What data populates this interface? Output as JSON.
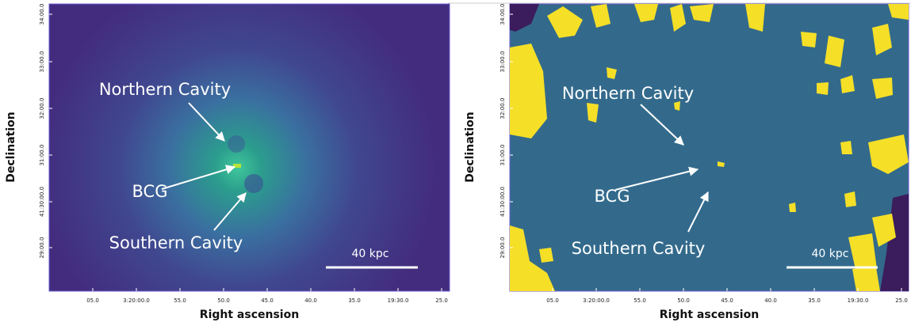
{
  "panels": [
    {
      "y_label": "Declination",
      "x_label": "Right ascension",
      "y_ticks": [
        "34:00.0",
        "33:00.0",
        "32:00.0",
        "31:00.0",
        "41:30:00.0",
        "29:00.0"
      ],
      "x_ticks": [
        "05.0",
        "3:20:00.0",
        "55.0",
        "50.0",
        "45.0",
        "40.0",
        "35.0",
        "19:30.0",
        "25.0"
      ],
      "annotations": [
        "Northern Cavity",
        "BCG",
        "Southern Cavity"
      ],
      "scale_bar": "40 kpc"
    },
    {
      "y_label": "Declination",
      "x_label": "Right ascension",
      "y_ticks": [
        "34:00.0",
        "33:00.0",
        "32:00.0",
        "31:00.0",
        "41:30:00.0",
        "29:00.0"
      ],
      "x_ticks": [
        "05.0",
        "3:20:00.0",
        "55.0",
        "50.0",
        "45.0",
        "40.0",
        "35.0",
        "19:30.0",
        "25.0"
      ],
      "annotations": [
        "Northern Cavity",
        "BCG",
        "Southern Cavity"
      ],
      "scale_bar": "40 kpc"
    }
  ]
}
